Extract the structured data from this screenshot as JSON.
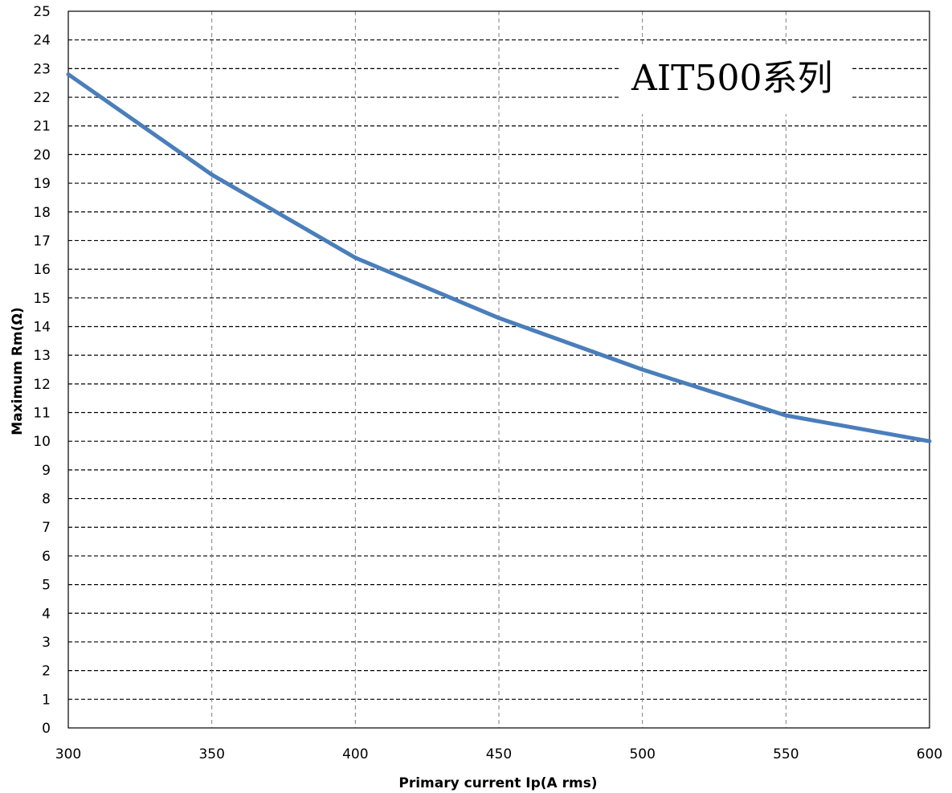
{
  "chart_data": {
    "type": "line",
    "title": "AIT500系列",
    "xlabel": "Primary current Ip(A rms)",
    "ylabel": "Maximum Rm(Ω)",
    "xlim": [
      300,
      600
    ],
    "ylim": [
      0,
      25
    ],
    "x_ticks": [
      300,
      350,
      400,
      450,
      500,
      550,
      600
    ],
    "y_ticks": [
      0,
      1,
      2,
      3,
      4,
      5,
      6,
      7,
      8,
      9,
      10,
      11,
      12,
      13,
      14,
      15,
      16,
      17,
      18,
      19,
      20,
      21,
      22,
      23,
      24,
      25
    ],
    "grid": true,
    "series": [
      {
        "x": [
          300,
          350,
          400,
          450,
          500,
          550,
          600
        ],
        "y": [
          22.8,
          19.3,
          16.4,
          14.3,
          12.5,
          10.9,
          10.0
        ],
        "color": "#4a7ebb"
      }
    ]
  }
}
